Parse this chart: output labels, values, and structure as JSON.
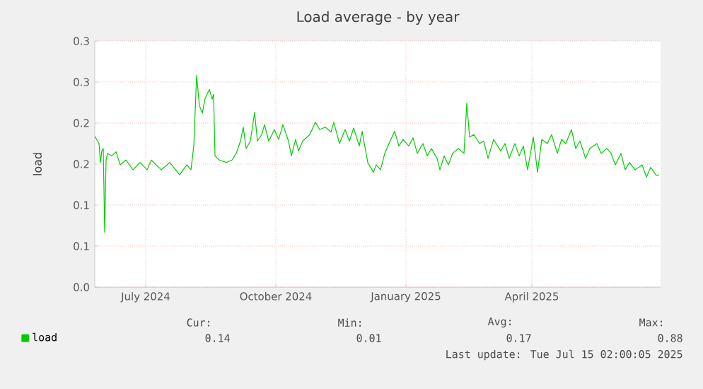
{
  "chart_data": {
    "type": "line",
    "title": "Load average - by year",
    "ylabel": "load",
    "legend": "bottom",
    "grid": true,
    "xlim": [
      "2024-06-10",
      "2025-07-15"
    ],
    "xticks": [
      {
        "value": "2024-07-16",
        "label": "July 2024"
      },
      {
        "value": "2024-10-16",
        "label": "October 2024"
      },
      {
        "value": "2025-01-16",
        "label": "January 2025"
      },
      {
        "value": "2025-04-15",
        "label": "April 2025"
      }
    ],
    "ylim": [
      0,
      0.3
    ],
    "yticks": [
      {
        "value": 0,
        "label": "0.0"
      },
      {
        "value": 0.05,
        "label": "0.1"
      },
      {
        "value": 0.1,
        "label": "0.1"
      },
      {
        "value": 0.15,
        "label": "0.2"
      },
      {
        "value": 0.2,
        "label": "0.2"
      },
      {
        "value": 0.25,
        "label": "0.3"
      },
      {
        "value": 0.3,
        "label": "0.3"
      }
    ],
    "annotations": [
      "Cur:",
      "Min:",
      "Avg:",
      "Max:",
      "0.14",
      "0.01",
      "0.17",
      "0.88",
      "Last update: Tue Jul 15 02:00:05 2025"
    ],
    "series": [
      {
        "name": "load",
        "color": "#00cc00",
        "x": [
          "2024-06-10",
          "2024-06-12",
          "2024-06-13",
          "2024-06-14",
          "2024-06-15",
          "2024-06-16",
          "2024-06-17",
          "2024-06-18",
          "2024-06-19",
          "2024-06-22",
          "2024-06-25",
          "2024-06-28",
          "2024-07-02",
          "2024-07-07",
          "2024-07-12",
          "2024-07-17",
          "2024-07-20",
          "2024-07-27",
          "2024-08-02",
          "2024-08-09",
          "2024-08-14",
          "2024-08-17",
          "2024-08-19",
          "2024-08-21",
          "2024-08-23",
          "2024-08-25",
          "2024-08-27",
          "2024-08-30",
          "2024-09-01",
          "2024-09-02",
          "2024-09-03",
          "2024-09-06",
          "2024-09-11",
          "2024-09-15",
          "2024-09-18",
          "2024-09-21",
          "2024-09-23",
          "2024-09-25",
          "2024-09-28",
          "2024-10-01",
          "2024-10-03",
          "2024-10-06",
          "2024-10-08",
          "2024-10-11",
          "2024-10-15",
          "2024-10-18",
          "2024-10-21",
          "2024-10-25",
          "2024-10-27",
          "2024-10-30",
          "2024-11-01",
          "2024-11-04",
          "2024-11-09",
          "2024-11-13",
          "2024-11-16",
          "2024-11-20",
          "2024-11-24",
          "2024-11-26",
          "2024-11-30",
          "2024-12-04",
          "2024-12-07",
          "2024-12-10",
          "2024-12-14",
          "2024-12-16",
          "2024-12-20",
          "2024-12-24",
          "2024-12-26",
          "2024-12-29",
          "2025-01-01",
          "2025-01-04",
          "2025-01-08",
          "2025-01-11",
          "2025-01-14",
          "2025-01-18",
          "2025-01-21",
          "2025-01-24",
          "2025-01-28",
          "2025-01-31",
          "2025-02-03",
          "2025-02-07",
          "2025-02-09",
          "2025-02-12",
          "2025-02-15",
          "2025-02-18",
          "2025-02-22",
          "2025-02-26",
          "2025-02-28",
          "2025-03-02",
          "2025-03-05",
          "2025-03-09",
          "2025-03-12",
          "2025-03-15",
          "2025-03-19",
          "2025-03-24",
          "2025-03-27",
          "2025-03-30",
          "2025-04-03",
          "2025-04-06",
          "2025-04-09",
          "2025-04-12",
          "2025-04-16",
          "2025-04-19",
          "2025-04-22",
          "2025-04-26",
          "2025-04-29",
          "2025-05-03",
          "2025-05-06",
          "2025-05-09",
          "2025-05-13",
          "2025-05-16",
          "2025-05-19",
          "2025-05-23",
          "2025-05-26",
          "2025-05-31",
          "2025-06-03",
          "2025-06-07",
          "2025-06-10",
          "2025-06-13",
          "2025-06-17",
          "2025-06-20",
          "2025-06-23",
          "2025-06-27",
          "2025-07-02",
          "2025-07-05",
          "2025-07-08",
          "2025-07-12",
          "2025-07-14"
        ],
        "values": [
          0.184,
          0.178,
          0.175,
          0.152,
          0.166,
          0.169,
          0.067,
          0.155,
          0.163,
          0.16,
          0.165,
          0.149,
          0.155,
          0.143,
          0.152,
          0.143,
          0.155,
          0.143,
          0.152,
          0.137,
          0.149,
          0.143,
          0.172,
          0.258,
          0.221,
          0.212,
          0.23,
          0.241,
          0.229,
          0.235,
          0.16,
          0.155,
          0.152,
          0.155,
          0.163,
          0.178,
          0.195,
          0.169,
          0.178,
          0.213,
          0.178,
          0.186,
          0.198,
          0.178,
          0.192,
          0.18,
          0.198,
          0.178,
          0.16,
          0.18,
          0.166,
          0.178,
          0.186,
          0.201,
          0.192,
          0.195,
          0.189,
          0.201,
          0.175,
          0.192,
          0.178,
          0.194,
          0.172,
          0.19,
          0.152,
          0.14,
          0.149,
          0.143,
          0.163,
          0.175,
          0.19,
          0.172,
          0.18,
          0.172,
          0.182,
          0.163,
          0.175,
          0.16,
          0.169,
          0.157,
          0.143,
          0.16,
          0.149,
          0.163,
          0.169,
          0.163,
          0.224,
          0.183,
          0.186,
          0.175,
          0.178,
          0.157,
          0.18,
          0.166,
          0.175,
          0.157,
          0.175,
          0.16,
          0.172,
          0.143,
          0.183,
          0.14,
          0.18,
          0.175,
          0.186,
          0.163,
          0.18,
          0.175,
          0.192,
          0.169,
          0.178,
          0.157,
          0.169,
          0.175,
          0.163,
          0.169,
          0.163,
          0.149,
          0.163,
          0.143,
          0.152,
          0.143,
          0.149,
          0.134,
          0.146,
          0.136,
          0.137
        ]
      }
    ]
  }
}
